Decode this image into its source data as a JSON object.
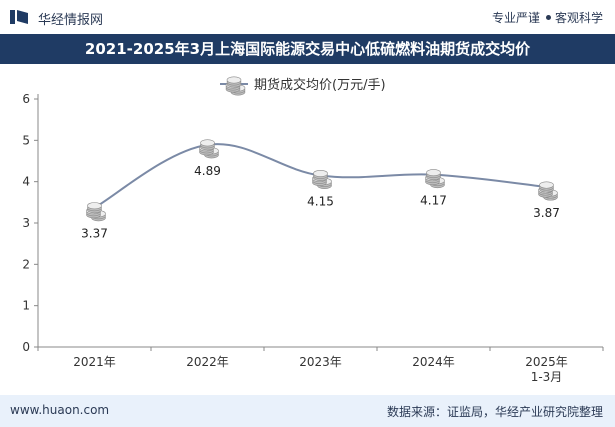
{
  "header": {
    "brand": "华经情报网",
    "slogan_left": "专业严谨",
    "slogan_right": "客观科学"
  },
  "title": "2021-2025年3月上海国际能源交易中心低硫燃料油期货成交均价",
  "footer": {
    "website": "www.huaon.com",
    "source": "数据来源：证监局，华经产业研究院整理"
  },
  "colors": {
    "title_bg": "#1f3b64",
    "line": "#7b8aa6",
    "footer_bg": "#e9f1fb"
  },
  "chart_data": {
    "type": "line",
    "title": "2021-2025年3月上海国际能源交易中心低硫燃料油期货成交均价",
    "categories": [
      "2021年",
      "2022年",
      "2023年",
      "2024年",
      "2025年\n1-3月"
    ],
    "series": [
      {
        "name": "期货成交均价(万元/手)",
        "values": [
          3.37,
          4.89,
          4.15,
          4.17,
          3.87
        ]
      }
    ],
    "data_labels": [
      "3.37",
      "4.89",
      "4.15",
      "4.17",
      "3.87"
    ],
    "ylim": [
      0,
      6
    ],
    "yticks": [
      0,
      1,
      2,
      3,
      4,
      5,
      6
    ],
    "xlabel": "",
    "ylabel": "",
    "legend": "top-center",
    "grid": false
  }
}
